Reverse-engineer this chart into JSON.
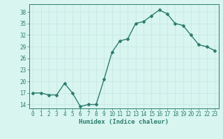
{
  "x": [
    0,
    1,
    2,
    3,
    4,
    5,
    6,
    7,
    8,
    9,
    10,
    11,
    12,
    13,
    14,
    15,
    16,
    17,
    18,
    19,
    20,
    21,
    22,
    23
  ],
  "y": [
    17,
    17,
    16.5,
    16.5,
    19.5,
    17,
    13.5,
    14,
    14,
    20.5,
    27.5,
    30.5,
    31,
    35,
    35.5,
    37,
    38.5,
    37.5,
    35,
    34.5,
    32,
    29.5,
    29,
    28
  ],
  "xlabel": "Humidex (Indice chaleur)",
  "ylim": [
    13,
    40
  ],
  "xlim": [
    -0.5,
    23.5
  ],
  "yticks": [
    14,
    17,
    20,
    23,
    26,
    29,
    32,
    35,
    38
  ],
  "xticks": [
    0,
    1,
    2,
    3,
    4,
    5,
    6,
    7,
    8,
    9,
    10,
    11,
    12,
    13,
    14,
    15,
    16,
    17,
    18,
    19,
    20,
    21,
    22,
    23
  ],
  "line_color": "#2e7d6e",
  "bg_color": "#d8f5f0",
  "grid_color": "#c8e8e2",
  "marker": "D",
  "marker_size": 2,
  "line_width": 1.0
}
